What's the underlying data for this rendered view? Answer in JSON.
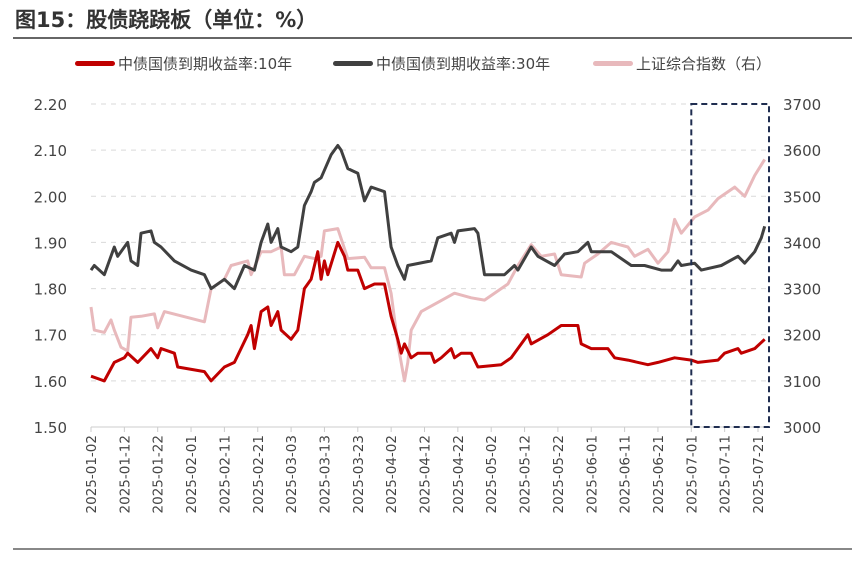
{
  "title": "图15：股债跷跷板（单位：%）",
  "chart_data": {
    "type": "line",
    "title": "图15：股债跷跷板（单位：%）",
    "y_left": {
      "ticks": [
        "1.50",
        "1.60",
        "1.70",
        "1.80",
        "1.90",
        "2.00",
        "2.10",
        "2.20"
      ],
      "range": [
        1.5,
        2.2
      ]
    },
    "y_right": {
      "ticks": [
        "3000",
        "3100",
        "3200",
        "3300",
        "3400",
        "3500",
        "3600",
        "3700"
      ],
      "range": [
        3000,
        3700
      ]
    },
    "x_ticks": [
      "2025-01-02",
      "2025-01-12",
      "2025-01-22",
      "2025-02-01",
      "2025-02-11",
      "2025-02-21",
      "2025-03-03",
      "2025-03-13",
      "2025-03-23",
      "2025-04-02",
      "2025-04-12",
      "2025-04-22",
      "2025-05-02",
      "2025-05-12",
      "2025-05-22",
      "2025-06-01",
      "2025-06-11",
      "2025-06-21",
      "2025-07-01",
      "2025-07-11",
      "2025-07-21"
    ],
    "grid": "horizontal dashed",
    "legend_position": "top",
    "highlight_box": {
      "from": "2025-07-01",
      "to": "2025-07-24",
      "color": "#1f2d50"
    },
    "series": [
      {
        "name": "中债国债到期收益率:10年",
        "axis": "left",
        "color": "#c00000",
        "points": [
          [
            "2025-01-02",
            1.61
          ],
          [
            "2025-01-06",
            1.6
          ],
          [
            "2025-01-09",
            1.64
          ],
          [
            "2025-01-12",
            1.65
          ],
          [
            "2025-01-13",
            1.66
          ],
          [
            "2025-01-16",
            1.64
          ],
          [
            "2025-01-20",
            1.67
          ],
          [
            "2025-01-22",
            1.65
          ],
          [
            "2025-01-23",
            1.67
          ],
          [
            "2025-01-27",
            1.66
          ],
          [
            "2025-01-28",
            1.63
          ],
          [
            "2025-02-05",
            1.62
          ],
          [
            "2025-02-07",
            1.6
          ],
          [
            "2025-02-11",
            1.63
          ],
          [
            "2025-02-14",
            1.64
          ],
          [
            "2025-02-18",
            1.7
          ],
          [
            "2025-02-19",
            1.72
          ],
          [
            "2025-02-20",
            1.67
          ],
          [
            "2025-02-22",
            1.75
          ],
          [
            "2025-02-24",
            1.76
          ],
          [
            "2025-02-25",
            1.72
          ],
          [
            "2025-02-27",
            1.75
          ],
          [
            "2025-02-28",
            1.71
          ],
          [
            "2025-03-03",
            1.69
          ],
          [
            "2025-03-05",
            1.71
          ],
          [
            "2025-03-07",
            1.8
          ],
          [
            "2025-03-09",
            1.82
          ],
          [
            "2025-03-11",
            1.88
          ],
          [
            "2025-03-12",
            1.82
          ],
          [
            "2025-03-13",
            1.86
          ],
          [
            "2025-03-14",
            1.83
          ],
          [
            "2025-03-17",
            1.9
          ],
          [
            "2025-03-19",
            1.87
          ],
          [
            "2025-03-20",
            1.84
          ],
          [
            "2025-03-23",
            1.84
          ],
          [
            "2025-03-24",
            1.82
          ],
          [
            "2025-03-25",
            1.8
          ],
          [
            "2025-03-28",
            1.81
          ],
          [
            "2025-03-31",
            1.81
          ],
          [
            "2025-04-02",
            1.74
          ],
          [
            "2025-04-04",
            1.69
          ],
          [
            "2025-04-05",
            1.66
          ],
          [
            "2025-04-06",
            1.68
          ],
          [
            "2025-04-08",
            1.65
          ],
          [
            "2025-04-10",
            1.66
          ],
          [
            "2025-04-14",
            1.66
          ],
          [
            "2025-04-15",
            1.64
          ],
          [
            "2025-04-17",
            1.65
          ],
          [
            "2025-04-20",
            1.67
          ],
          [
            "2025-04-21",
            1.65
          ],
          [
            "2025-04-23",
            1.66
          ],
          [
            "2025-04-26",
            1.66
          ],
          [
            "2025-04-28",
            1.63
          ],
          [
            "2025-05-05",
            1.635
          ],
          [
            "2025-05-08",
            1.65
          ],
          [
            "2025-05-13",
            1.7
          ],
          [
            "2025-05-14",
            1.68
          ],
          [
            "2025-05-19",
            1.7
          ],
          [
            "2025-05-23",
            1.72
          ],
          [
            "2025-05-28",
            1.72
          ],
          [
            "2025-05-29",
            1.68
          ],
          [
            "2025-06-01",
            1.67
          ],
          [
            "2025-06-06",
            1.67
          ],
          [
            "2025-06-08",
            1.65
          ],
          [
            "2025-06-12",
            1.645
          ],
          [
            "2025-06-18",
            1.635
          ],
          [
            "2025-06-21",
            1.64
          ],
          [
            "2025-06-26",
            1.65
          ],
          [
            "2025-07-01",
            1.645
          ],
          [
            "2025-07-03",
            1.64
          ],
          [
            "2025-07-09",
            1.645
          ],
          [
            "2025-07-11",
            1.66
          ],
          [
            "2025-07-15",
            1.67
          ],
          [
            "2025-07-16",
            1.66
          ],
          [
            "2025-07-20",
            1.67
          ],
          [
            "2025-07-23",
            1.69
          ]
        ]
      },
      {
        "name": "中债国债到期收益率:30年",
        "axis": "left",
        "color": "#404040",
        "points": [
          [
            "2025-01-02",
            1.84
          ],
          [
            "2025-01-03",
            1.85
          ],
          [
            "2025-01-06",
            1.83
          ],
          [
            "2025-01-09",
            1.89
          ],
          [
            "2025-01-10",
            1.87
          ],
          [
            "2025-01-13",
            1.9
          ],
          [
            "2025-01-14",
            1.86
          ],
          [
            "2025-01-16",
            1.85
          ],
          [
            "2025-01-17",
            1.92
          ],
          [
            "2025-01-20",
            1.925
          ],
          [
            "2025-01-21",
            1.9
          ],
          [
            "2025-01-23",
            1.89
          ],
          [
            "2025-01-27",
            1.86
          ],
          [
            "2025-02-01",
            1.84
          ],
          [
            "2025-02-05",
            1.83
          ],
          [
            "2025-02-07",
            1.8
          ],
          [
            "2025-02-11",
            1.82
          ],
          [
            "2025-02-14",
            1.8
          ],
          [
            "2025-02-17",
            1.85
          ],
          [
            "2025-02-20",
            1.84
          ],
          [
            "2025-02-22",
            1.9
          ],
          [
            "2025-02-24",
            1.94
          ],
          [
            "2025-02-25",
            1.9
          ],
          [
            "2025-02-27",
            1.93
          ],
          [
            "2025-02-28",
            1.89
          ],
          [
            "2025-03-03",
            1.88
          ],
          [
            "2025-03-05",
            1.89
          ],
          [
            "2025-03-07",
            1.98
          ],
          [
            "2025-03-09",
            2.01
          ],
          [
            "2025-03-10",
            2.03
          ],
          [
            "2025-03-12",
            2.04
          ],
          [
            "2025-03-15",
            2.09
          ],
          [
            "2025-03-17",
            2.11
          ],
          [
            "2025-03-18",
            2.1
          ],
          [
            "2025-03-20",
            2.06
          ],
          [
            "2025-03-23",
            2.05
          ],
          [
            "2025-03-25",
            1.99
          ],
          [
            "2025-03-27",
            2.02
          ],
          [
            "2025-03-31",
            2.01
          ],
          [
            "2025-04-02",
            1.89
          ],
          [
            "2025-04-04",
            1.85
          ],
          [
            "2025-04-06",
            1.82
          ],
          [
            "2025-04-07",
            1.85
          ],
          [
            "2025-04-14",
            1.86
          ],
          [
            "2025-04-16",
            1.91
          ],
          [
            "2025-04-20",
            1.92
          ],
          [
            "2025-04-21",
            1.9
          ],
          [
            "2025-04-22",
            1.925
          ],
          [
            "2025-04-27",
            1.93
          ],
          [
            "2025-04-28",
            1.92
          ],
          [
            "2025-04-30",
            1.83
          ],
          [
            "2025-05-06",
            1.83
          ],
          [
            "2025-05-09",
            1.85
          ],
          [
            "2025-05-10",
            1.84
          ],
          [
            "2025-05-14",
            1.89
          ],
          [
            "2025-05-16",
            1.87
          ],
          [
            "2025-05-21",
            1.85
          ],
          [
            "2025-05-24",
            1.875
          ],
          [
            "2025-05-28",
            1.88
          ],
          [
            "2025-05-31",
            1.9
          ],
          [
            "2025-06-01",
            1.88
          ],
          [
            "2025-06-07",
            1.88
          ],
          [
            "2025-06-11",
            1.86
          ],
          [
            "2025-06-13",
            1.85
          ],
          [
            "2025-06-17",
            1.85
          ],
          [
            "2025-06-22",
            1.84
          ],
          [
            "2025-06-25",
            1.84
          ],
          [
            "2025-06-27",
            1.86
          ],
          [
            "2025-06-28",
            1.85
          ],
          [
            "2025-07-02",
            1.855
          ],
          [
            "2025-07-04",
            1.84
          ],
          [
            "2025-07-10",
            1.85
          ],
          [
            "2025-07-15",
            1.87
          ],
          [
            "2025-07-17",
            1.855
          ],
          [
            "2025-07-20",
            1.88
          ],
          [
            "2025-07-22",
            1.91
          ],
          [
            "2025-07-23",
            1.935
          ]
        ]
      },
      {
        "name": "上证综合指数（右）",
        "axis": "right",
        "color": "#e8b9bc",
        "points": [
          [
            "2025-01-02",
            3260
          ],
          [
            "2025-01-03",
            3210
          ],
          [
            "2025-01-06",
            3205
          ],
          [
            "2025-01-08",
            3232
          ],
          [
            "2025-01-09",
            3210
          ],
          [
            "2025-01-11",
            3173
          ],
          [
            "2025-01-13",
            3165
          ],
          [
            "2025-01-14",
            3238
          ],
          [
            "2025-01-17",
            3240
          ],
          [
            "2025-01-21",
            3245
          ],
          [
            "2025-01-22",
            3215
          ],
          [
            "2025-01-24",
            3250
          ],
          [
            "2025-02-05",
            3228
          ],
          [
            "2025-02-07",
            3300
          ],
          [
            "2025-02-11",
            3320
          ],
          [
            "2025-02-13",
            3350
          ],
          [
            "2025-02-18",
            3360
          ],
          [
            "2025-02-19",
            3330
          ],
          [
            "2025-02-22",
            3380
          ],
          [
            "2025-02-25",
            3380
          ],
          [
            "2025-02-28",
            3390
          ],
          [
            "2025-03-01",
            3330
          ],
          [
            "2025-03-04",
            3330
          ],
          [
            "2025-03-07",
            3370
          ],
          [
            "2025-03-10",
            3365
          ],
          [
            "2025-03-12",
            3370
          ],
          [
            "2025-03-13",
            3425
          ],
          [
            "2025-03-17",
            3430
          ],
          [
            "2025-03-20",
            3365
          ],
          [
            "2025-03-25",
            3368
          ],
          [
            "2025-03-27",
            3345
          ],
          [
            "2025-03-31",
            3345
          ],
          [
            "2025-04-02",
            3290
          ],
          [
            "2025-04-04",
            3180
          ],
          [
            "2025-04-06",
            3100
          ],
          [
            "2025-04-07",
            3140
          ],
          [
            "2025-04-08",
            3210
          ],
          [
            "2025-04-11",
            3250
          ],
          [
            "2025-04-16",
            3270
          ],
          [
            "2025-04-21",
            3290
          ],
          [
            "2025-04-26",
            3280
          ],
          [
            "2025-04-30",
            3275
          ],
          [
            "2025-05-07",
            3310
          ],
          [
            "2025-05-10",
            3350
          ],
          [
            "2025-05-14",
            3395
          ],
          [
            "2025-05-17",
            3370
          ],
          [
            "2025-05-21",
            3375
          ],
          [
            "2025-05-23",
            3330
          ],
          [
            "2025-05-29",
            3325
          ],
          [
            "2025-05-30",
            3355
          ],
          [
            "2025-06-03",
            3375
          ],
          [
            "2025-06-07",
            3400
          ],
          [
            "2025-06-12",
            3390
          ],
          [
            "2025-06-14",
            3370
          ],
          [
            "2025-06-18",
            3385
          ],
          [
            "2025-06-21",
            3355
          ],
          [
            "2025-06-24",
            3380
          ],
          [
            "2025-06-26",
            3450
          ],
          [
            "2025-06-28",
            3420
          ],
          [
            "2025-07-02",
            3455
          ],
          [
            "2025-07-06",
            3470
          ],
          [
            "2025-07-09",
            3495
          ],
          [
            "2025-07-14",
            3520
          ],
          [
            "2025-07-17",
            3500
          ],
          [
            "2025-07-20",
            3545
          ],
          [
            "2025-07-23",
            3580
          ]
        ]
      }
    ]
  }
}
